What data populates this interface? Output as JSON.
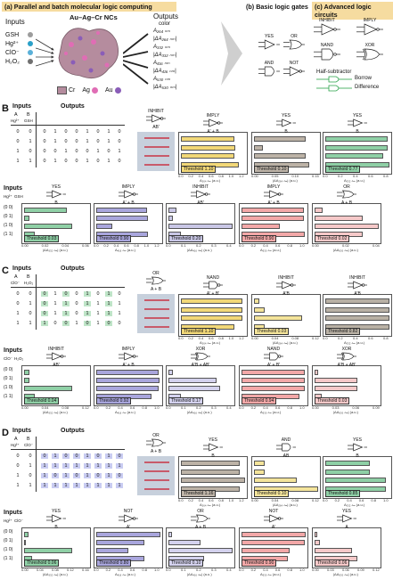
{
  "panel_a": {
    "label": "(a)",
    "header": "Parallel and batch molecular logic computing",
    "inputs_title": "Inputs",
    "inputs": [
      "GSH",
      "Hg²⁺",
      "ClO⁻",
      "H₂O₂"
    ],
    "nc_title": "Au–Ag–Cr NCs",
    "outputs_title": "Outputs",
    "outputs_sub": "color",
    "outputs": [
      "A₂₆₄ ₙₘ",
      "|ΔA₂₆₄ ₙₘ|",
      "A₃₃₂ ₙₘ",
      "|ΔA₃₃₂ ₙₘ|",
      "A₄₁₆ ₙₘ",
      "|ΔA₄₁₆ ₙₘ|",
      "A₅₃₀ ₙₘ",
      "|ΔA₅₃₀ ₙₘ|"
    ],
    "legend": [
      "Cr",
      "Ag",
      "Au"
    ]
  },
  "panel_b": {
    "label": "(b)",
    "header": "Basic logic gates",
    "gates": [
      "YES",
      "OR",
      "AND",
      "NOT"
    ]
  },
  "panel_c": {
    "label": "(c)",
    "header": "Advanced logic circuits",
    "gates": [
      "INHIBIT",
      "IMPLY",
      "NAND",
      "XOR"
    ],
    "half_sub": "Half-subtractor",
    "borrow": "Borrow",
    "difference": "Difference"
  },
  "sections": [
    {
      "letter": "B",
      "inputs_label": "Inputs",
      "outputs_label": "Outputs",
      "col_a": "A",
      "col_b": "B",
      "in_a": "Hg²⁺",
      "in_b": "GSH",
      "rows": [
        [
          "0",
          "0",
          "0",
          "1",
          "0",
          "0",
          "1",
          "0",
          "1",
          "0"
        ],
        [
          "0",
          "1",
          "0",
          "1",
          "0",
          "0",
          "1",
          "0",
          "1",
          "0"
        ],
        [
          "1",
          "0",
          "0",
          "0",
          "1",
          "0",
          "0",
          "1",
          "0",
          "1"
        ],
        [
          "1",
          "1",
          "0",
          "1",
          "0",
          "0",
          "1",
          "0",
          "1",
          "0"
        ]
      ],
      "gate_color": "INHIBIT",
      "gate_color_expr": "AB'",
      "charts_top": [
        {
          "gate": "IMPLY",
          "expr": "A' + B",
          "color": "#f2d878",
          "values": [
            1.0,
            1.02,
            1.0,
            1.08
          ],
          "threshold": "Threshold 1.10",
          "ticks": [
            "0.0",
            "0.2",
            "0.4",
            "0.6",
            "0.8",
            "1.0",
            "1.2"
          ],
          "xlabel": "A₂₆₄ ₙₘ (a.u.)"
        },
        {
          "gate": "YES",
          "expr": "B",
          "color": "#bdb3a7",
          "values": [
            0.12,
            0.02,
            0.12,
            0.13
          ],
          "threshold": "Threshold 0.10",
          "ticks": [
            "0.00",
            "0.05",
            "0.10",
            "0.15"
          ],
          "xlabel": "|ΔA₂₆₄ ₙₘ| (a.u.)"
        },
        {
          "gate": "YES",
          "expr": "B",
          "color": "#8fd0a6",
          "values": [
            0.78,
            0.78,
            0.72,
            0.8
          ],
          "threshold": "Threshold 0.77",
          "ticks": [
            "0.0",
            "0.2",
            "0.4",
            "0.6",
            "0.8"
          ],
          "xlabel": "A₃₃₂ ₙₘ (a.u.)"
        }
      ],
      "charts_bottom": [
        {
          "gate": "YES",
          "expr": "B",
          "color": "#8fd0a6",
          "values": [
            0.04,
            0.005,
            0.045,
            0.01
          ],
          "threshold": "Threshold 0.03",
          "ticks": [
            "0.00",
            "0.02",
            "0.04",
            "0.06"
          ],
          "xlabel": "|ΔA₃₃₂ ₙₘ| (a.u.)"
        },
        {
          "gate": "IMPLY",
          "expr": "A' + B",
          "color": "#a9a6dd",
          "values": [
            0.95,
            0.96,
            0.3,
            0.97
          ],
          "threshold": "Threshold 0.90",
          "ticks": [
            "0.0",
            "0.2",
            "0.4",
            "0.6",
            "0.8",
            "1.0",
            "1.2"
          ],
          "xlabel": "A₄₁₆ ₙₘ (a.u.)"
        },
        {
          "gate": "INHIBIT",
          "expr": "AB'",
          "color": "#c9c7e6",
          "values": [
            0.05,
            0.03,
            0.4,
            0.08
          ],
          "threshold": "Threshold 0.20",
          "ticks": [
            "0.0",
            "0.1",
            "0.2",
            "0.3",
            "0.4"
          ],
          "xlabel": "|ΔA₄₁₆ ₙₘ| (a.u.)"
        },
        {
          "gate": "IMPLY",
          "expr": "A' + B",
          "color": "#f3a8a8",
          "values": [
            0.97,
            0.97,
            0.6,
            0.99
          ],
          "threshold": "Threshold 0.90",
          "ticks": [
            "0.0",
            "0.2",
            "0.4",
            "0.6",
            "0.8",
            "1.0"
          ],
          "xlabel": "A₅₃₀ ₙₘ (a.u.)"
        },
        {
          "gate": "OR",
          "expr": "A + B",
          "color": "#f6c9c9",
          "values": [
            0.005,
            0.03,
            0.04,
            0.03
          ],
          "threshold": "Threshold 0.02",
          "ticks": [
            "0.00",
            "0.02",
            "0.04"
          ],
          "xlabel": "|ΔA₅₃₀ ₙₘ| (a.u.)"
        }
      ]
    },
    {
      "letter": "C",
      "inputs_label": "Inputs",
      "outputs_label": "Outputs",
      "col_a": "A",
      "col_b": "B",
      "in_a": "ClO⁻",
      "in_b": "H₂O₂",
      "rows": [
        [
          "0",
          "0",
          "0",
          "1",
          "0",
          "0",
          "1",
          "0",
          "1",
          "0"
        ],
        [
          "0",
          "1",
          "0",
          "1",
          "1",
          "0",
          "1",
          "1",
          "1",
          "1"
        ],
        [
          "1",
          "0",
          "0",
          "1",
          "1",
          "0",
          "1",
          "1",
          "1",
          "1"
        ],
        [
          "1",
          "1",
          "1",
          "0",
          "0",
          "1",
          "0",
          "1",
          "0",
          "0"
        ]
      ],
      "gate_color": "OR",
      "gate_color_expr": "A + B",
      "charts_top": [
        {
          "gate": "NAND",
          "expr": "A' + B'",
          "color": "#f2d878",
          "values": [
            1.15,
            1.15,
            1.15,
            1.0
          ],
          "threshold": "Threshold 1.10",
          "ticks": [
            "0.0",
            "0.2",
            "0.4",
            "0.6",
            "0.8",
            "1.0",
            "1.2"
          ],
          "xlabel": "A₂₆₄ ₙₘ (a.u.)"
        },
        {
          "gate": "INHIBIT",
          "expr": "A'B",
          "color": "#f4e49a",
          "values": [
            0.01,
            0.02,
            0.09,
            0.02
          ],
          "threshold": "Threshold 0.03",
          "ticks": [
            "0.00",
            "0.04",
            "0.08",
            "0.12"
          ],
          "xlabel": "|ΔA₂₆₄ ₙₘ| (a.u.)"
        },
        {
          "gate": "INHIBIT",
          "expr": "A'B",
          "color": "#b9b1a5",
          "values": [
            0.83,
            0.84,
            0.82,
            0.8
          ],
          "threshold": "Threshold 0.82",
          "ticks": [
            "0.0",
            "0.2",
            "0.4",
            "0.6",
            "0.8"
          ],
          "xlabel": "A₃₃₂ ₙₘ (a.u.)"
        }
      ],
      "charts_bottom": [
        {
          "gate": "INHIBIT",
          "expr": "AB'",
          "color": "#8fd0a6",
          "values": [
            0.01,
            0.01,
            0.09,
            0.02
          ],
          "threshold": "Threshold 0.04",
          "ticks": [
            "0.00",
            "0.04",
            "0.08",
            "0.12"
          ],
          "xlabel": "|ΔA₃₃₂ ₙₘ| (a.u.)"
        },
        {
          "gate": "IMPLY",
          "expr": "A' + B",
          "color": "#a9a6dd",
          "values": [
            0.97,
            0.98,
            0.97,
            0.86
          ],
          "threshold": "Threshold 0.92",
          "ticks": [
            "0.0",
            "0.2",
            "0.4",
            "0.6",
            "0.8",
            "1.0"
          ],
          "xlabel": "A₄₁₆ ₙₘ (a.u.)"
        },
        {
          "gate": "XOR",
          "expr": "A'B + AB'",
          "color": "#d4d2ee",
          "values": [
            0.03,
            0.3,
            0.32,
            0.08
          ],
          "threshold": "Threshold 0.17",
          "ticks": [
            "0.0",
            "0.1",
            "0.2",
            "0.3",
            "0.4"
          ],
          "xlabel": "|ΔA₄₁₆ ₙₘ| (a.u.)"
        },
        {
          "gate": "NAND",
          "expr": "A' + B'",
          "color": "#f3a8a8",
          "values": [
            0.98,
            0.98,
            0.98,
            0.9
          ],
          "threshold": "Threshold 0.94",
          "ticks": [
            "0.0",
            "0.2",
            "0.4",
            "0.6",
            "0.8",
            "1.0"
          ],
          "xlabel": "A₅₃₀ ₙₘ (a.u.)"
        },
        {
          "gate": "XOR",
          "expr": "A'B + AB'",
          "color": "#f6c9c9",
          "values": [
            0.005,
            0.06,
            0.06,
            0.01
          ],
          "threshold": "Threshold 0.03",
          "ticks": [
            "0.00",
            "0.03",
            "0.06",
            "0.09"
          ],
          "xlabel": "|ΔA₅₃₀ ₙₘ| (a.u.)"
        }
      ]
    },
    {
      "letter": "D",
      "inputs_label": "Inputs",
      "outputs_label": "Outputs",
      "col_a": "A",
      "col_b": "B",
      "in_a": "Hg²⁺",
      "in_b": "ClO⁻",
      "rows": [
        [
          "0",
          "0",
          "0",
          "1",
          "0",
          "0",
          "1",
          "0",
          "1",
          "0"
        ],
        [
          "0",
          "1",
          "1",
          "1",
          "1",
          "1",
          "1",
          "1",
          "1",
          "1"
        ],
        [
          "1",
          "0",
          "1",
          "0",
          "1",
          "0",
          "1",
          "0",
          "1",
          "0"
        ],
        [
          "1",
          "1",
          "1",
          "1",
          "1",
          "1",
          "1",
          "1",
          "1",
          "1"
        ]
      ],
      "gate_color": "OR",
      "gate_color_expr": "A + B",
      "charts_top": [
        {
          "gate": "YES",
          "expr": "B",
          "color": "#bdb3a7",
          "values": [
            1.1,
            1.1,
            1.2,
            1.1
          ],
          "threshold": "Threshold 1.16",
          "ticks": [
            "0.0",
            "0.2",
            "0.4",
            "0.6",
            "0.8",
            "1.0",
            "1.2"
          ],
          "xlabel": "A₂₆₄ ₙₘ (a.u.)"
        },
        {
          "gate": "AND",
          "expr": "AB",
          "color": "#f4e49a",
          "values": [
            0.02,
            0.02,
            0.08,
            0.12
          ],
          "threshold": "Threshold 0.10",
          "ticks": [
            "0.00",
            "0.04",
            "0.08",
            "0.12"
          ],
          "xlabel": "|ΔA₂₆₄ ₙₘ| (a.u.)"
        },
        {
          "gate": "YES",
          "expr": "B",
          "color": "#8fd0a6",
          "values": [
            0.7,
            0.7,
            0.95,
            0.95
          ],
          "threshold": "Threshold 0.85",
          "ticks": [
            "0.0",
            "0.2",
            "0.4",
            "0.6",
            "0.8",
            "1.0"
          ],
          "xlabel": "A₃₃₂ ₙₘ (a.u.)"
        }
      ],
      "charts_bottom": [
        {
          "gate": "YES",
          "expr": "B",
          "color": "#8fd0a6",
          "values": [
            0.01,
            0.005,
            0.12,
            0.02
          ],
          "threshold": "Threshold 0.06",
          "ticks": [
            "0.00",
            "0.04",
            "0.08",
            "0.12",
            "0.16"
          ],
          "xlabel": "|ΔA₃₃₂ ₙₘ| (a.u.)"
        },
        {
          "gate": "NOT",
          "expr": "A'",
          "color": "#a9a6dd",
          "values": [
            1.0,
            0.75,
            0.5,
            0.75
          ],
          "threshold": "Threshold 0.80",
          "ticks": [
            "0.0",
            "0.2",
            "0.4",
            "0.6",
            "0.8",
            "1.0"
          ],
          "xlabel": "A₄₁₆ ₙₘ (a.u.)"
        },
        {
          "gate": "OR",
          "expr": "A + B",
          "color": "#d4d2ee",
          "values": [
            0.02,
            0.2,
            0.4,
            0.22
          ],
          "threshold": "Threshold 0.10",
          "ticks": [
            "0.0",
            "0.1",
            "0.2",
            "0.3",
            "0.4"
          ],
          "xlabel": "|ΔA₄₁₆ ₙₘ| (a.u.)"
        },
        {
          "gate": "NOT",
          "expr": "A'",
          "color": "#f3a8a8",
          "values": [
            1.0,
            0.98,
            0.75,
            0.72
          ],
          "threshold": "Threshold 0.90",
          "ticks": [
            "0.0",
            "0.2",
            "0.4",
            "0.6",
            "0.8",
            "1.0"
          ],
          "xlabel": "A₅₃₀ ₙₘ (a.u.)"
        },
        {
          "gate": "YES",
          "expr": "A",
          "color": "#f6c9c9",
          "values": [
            0.005,
            0.01,
            0.07,
            0.08
          ],
          "threshold": "Threshold 0.06",
          "ticks": [
            "0.00",
            "0.03",
            "0.06",
            "0.09",
            "0.12"
          ],
          "xlabel": "|ΔA₅₃₀ ₙₘ| (a.u.)"
        }
      ]
    }
  ],
  "row_labels": [
    "(0   0)",
    "(0   1)",
    "(1   0)",
    "(1   1)"
  ]
}
